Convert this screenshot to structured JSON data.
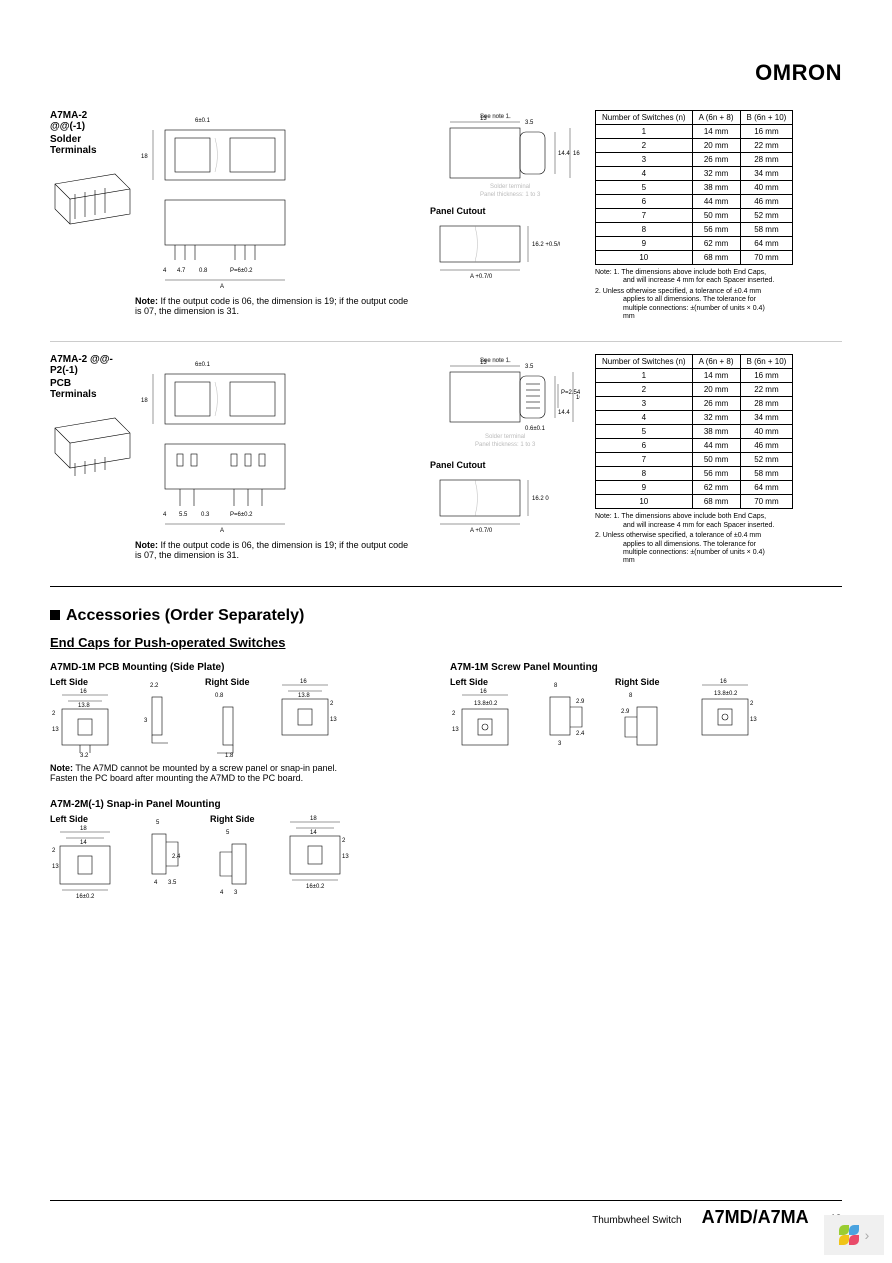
{
  "brand": "OMRON",
  "section1": {
    "model": "A7MA-2   @@(-1)",
    "subtitle": "Solder Terminals",
    "note_prefix": "Note:",
    "note": "If the output code is 06, the dimension is 19; if the output code is 07, the dimension is 31.",
    "panel_cutout_label": "Panel Cutout",
    "solder_label": "Solder terminal",
    "panel_thickness": "Panel thickness: 1 to 3",
    "see_note": "See note 1.",
    "table": {
      "headers": [
        "Number of Switches (n)",
        "A (6n + 8)",
        "B (6n + 10)"
      ],
      "rows": [
        [
          "1",
          "14 mm",
          "16 mm"
        ],
        [
          "2",
          "20 mm",
          "22 mm"
        ],
        [
          "3",
          "26 mm",
          "28 mm"
        ],
        [
          "4",
          "32 mm",
          "34 mm"
        ],
        [
          "5",
          "38 mm",
          "40 mm"
        ],
        [
          "6",
          "44 mm",
          "46 mm"
        ],
        [
          "7",
          "50 mm",
          "52 mm"
        ],
        [
          "8",
          "56 mm",
          "58 mm"
        ],
        [
          "9",
          "62 mm",
          "64 mm"
        ],
        [
          "10",
          "68 mm",
          "70 mm"
        ]
      ],
      "note1": "Note: 1. The dimensions above include both End Caps, and will increase 4 mm for each Spacer inserted.",
      "note2": "2. Unless otherwise specified, a tolerance of ±0.4 mm applies to all dimensions. The tolerance for multiple connections: ±(number of units × 0.4) mm"
    },
    "dims": {
      "w18": "18",
      "w6": "6±0.1",
      "a_label": "A",
      "p6": "P=6±0.2",
      "l4": "4",
      "l47": "4.7",
      "l08": "0.8",
      "r13": "13",
      "r144": "14.4",
      "r16": "16",
      "r35": "3.5",
      "cut162": "16.2 +0.5/0",
      "cut_a": "A +0.7/0"
    }
  },
  "section2": {
    "model": "A7MA-2   @@-P2(-1)",
    "subtitle": "PCB Terminals",
    "note_prefix": "Note:",
    "note": "If the output code is 06, the dimension is 19; if the output code is 07, the dimension is 31.",
    "panel_cutout_label": "Panel Cutout",
    "solder_label": "Solder terminal",
    "panel_thickness": "Panel thickness: 1 to 3",
    "see_note": "See note 1.",
    "table": {
      "headers": [
        "Number of Switches (n)",
        "A (6n + 8)",
        "B (6n + 10)"
      ],
      "rows": [
        [
          "1",
          "14 mm",
          "16 mm"
        ],
        [
          "2",
          "20 mm",
          "22 mm"
        ],
        [
          "3",
          "26 mm",
          "28 mm"
        ],
        [
          "4",
          "32 mm",
          "34 mm"
        ],
        [
          "5",
          "38 mm",
          "40 mm"
        ],
        [
          "6",
          "44 mm",
          "46 mm"
        ],
        [
          "7",
          "50 mm",
          "52 mm"
        ],
        [
          "8",
          "56 mm",
          "58 mm"
        ],
        [
          "9",
          "62 mm",
          "64 mm"
        ],
        [
          "10",
          "68 mm",
          "70 mm"
        ]
      ],
      "note1": "Note: 1. The dimensions above include both End Caps, and will increase 4 mm for each Spacer inserted.",
      "note2": "2. Unless otherwise specified, a tolerance of ±0.4 mm applies to all dimensions. The tolerance for multiple connections: ±(number of units × 0.4) mm"
    },
    "dims": {
      "w18": "18",
      "w6": "6±0.1",
      "a_label": "A",
      "p6": "P=6±0.2",
      "l4": "4",
      "l55": "5.5",
      "l03": "0.3",
      "r13": "13",
      "r144": "14.4",
      "r16": "16",
      "r35": "3.5",
      "p254": "P=2.54",
      "l06": "0.6±0.1",
      "cut162": "16.2 0",
      "cut_a": "A +0.7/0"
    }
  },
  "accessories": {
    "heading": "Accessories (Order Separately)",
    "subheading": "End Caps for Push-operated Switches",
    "left_label": "Left Side",
    "right_label": "Right Side",
    "cap1": {
      "title": "A7MD-1M PCB Mounting (Side Plate)",
      "note_prefix": "Note:",
      "note": "The A7MD cannot be mounted by a screw panel or snap-in panel. Fasten the PC board after mounting the A7MD to the PC board.",
      "dims": {
        "d16": "16",
        "d138": "13.8",
        "d2": "2",
        "d13": "13",
        "d32": "3.2",
        "d22": "2.2",
        "d3": "3",
        "d18": "1.8",
        "d08": "0.8"
      }
    },
    "cap2": {
      "title": "A7M-1M Screw Panel Mounting",
      "dims": {
        "d16": "16",
        "d138": "13.8±0.2",
        "d2": "2",
        "d13": "13",
        "d8": "8",
        "d29": "2.9",
        "d24": "2.4",
        "d3": "3"
      }
    },
    "cap3": {
      "title": "A7M-2M(-1) Snap-in Panel Mounting",
      "dims": {
        "d18": "18",
        "d14": "14",
        "d2": "2",
        "d13": "13",
        "d16t": "16±0.2",
        "d5": "5",
        "d4": "4",
        "d3": "3",
        "d35": "3.5",
        "d24": "2.4"
      }
    }
  },
  "footer": {
    "category": "Thumbwheel Switch",
    "model": "A7MD/A7MA",
    "page": "49"
  },
  "colors": {
    "logo": [
      "#9acd32",
      "#4aa3df",
      "#f0c419",
      "#e94b6a"
    ]
  }
}
